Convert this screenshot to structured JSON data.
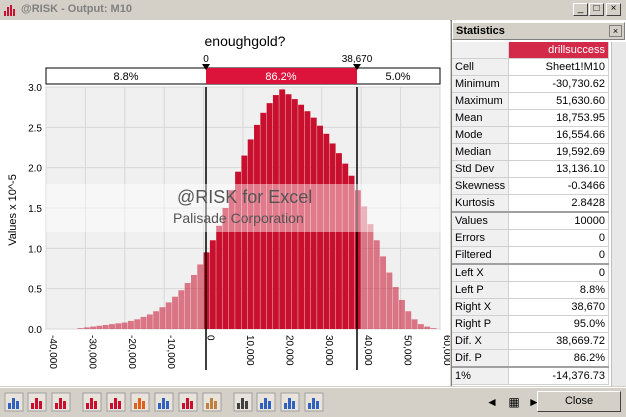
{
  "window": {
    "title": "@RISK - Output: M10",
    "buttons": [
      "_",
      "□",
      "×"
    ]
  },
  "chart": {
    "title": "enoughgold?",
    "ylabel": "Values x 10^-5",
    "delimiter_left_value": "0",
    "delimiter_right_value": "38,670",
    "band_left": "8.8%",
    "band_mid": "86.2%",
    "band_right": "5.0%",
    "watermark_line1": "@RISK for Excel",
    "watermark_line2": "Palisade Corporation",
    "colors": {
      "bar": "#c8102e",
      "band": "#dc143c"
    }
  },
  "chart_data": {
    "type": "bar",
    "title": "enoughgold?",
    "ylabel": "Values x 10^-5",
    "xlim": [
      -40000,
      60000
    ],
    "ylim": [
      0,
      3.0
    ],
    "xticks": [
      "-40,000",
      "-30,000",
      "-20,000",
      "-10,000",
      "0",
      "10,000",
      "20,000",
      "30,000",
      "40,000",
      "50,000",
      "60,000"
    ],
    "yticks": [
      "0.0",
      "0.5",
      "1.0",
      "1.5",
      "2.0",
      "2.5",
      "3.0"
    ],
    "bin_width": 1600,
    "bin_start": -32000,
    "values": [
      0.01,
      0.02,
      0.03,
      0.04,
      0.05,
      0.06,
      0.07,
      0.08,
      0.1,
      0.12,
      0.15,
      0.18,
      0.22,
      0.27,
      0.33,
      0.4,
      0.48,
      0.57,
      0.67,
      0.8,
      0.95,
      1.1,
      1.28,
      1.5,
      1.72,
      1.95,
      2.15,
      2.35,
      2.53,
      2.68,
      2.8,
      2.9,
      2.97,
      2.91,
      2.85,
      2.78,
      2.7,
      2.62,
      2.52,
      2.42,
      2.3,
      2.18,
      2.05,
      1.9,
      1.72,
      1.52,
      1.3,
      1.1,
      0.9,
      0.7,
      0.52,
      0.36,
      0.22,
      0.12,
      0.06,
      0.03,
      0.01
    ],
    "delimiters": [
      0,
      38670
    ]
  },
  "stats": {
    "title": "Statistics",
    "column": "drillsuccess",
    "rows": [
      {
        "label": "Cell",
        "value": "Sheet1!M10"
      },
      {
        "label": "Minimum",
        "value": "-30,730.62"
      },
      {
        "label": "Maximum",
        "value": "51,630.60"
      },
      {
        "label": "Mean",
        "value": "18,753.95"
      },
      {
        "label": "Mode",
        "value": "16,554.66"
      },
      {
        "label": "Median",
        "value": "19,592.69"
      },
      {
        "label": "Std Dev",
        "value": "13,136.10"
      },
      {
        "label": "Skewness",
        "value": "-0.3466"
      },
      {
        "label": "Kurtosis",
        "value": "2.8428"
      },
      {
        "label": "Values",
        "value": "10000"
      },
      {
        "label": "Errors",
        "value": "0"
      },
      {
        "label": "Filtered",
        "value": "0"
      },
      {
        "label": "Left X",
        "value": "0"
      },
      {
        "label": "Left P",
        "value": "8.8%"
      },
      {
        "label": "Right X",
        "value": "38,670"
      },
      {
        "label": "Right P",
        "value": "95.0%"
      },
      {
        "label": "Dif. X",
        "value": "38,669.72"
      },
      {
        "label": "Dif. P",
        "value": "86.2%"
      },
      {
        "label": "1%",
        "value": "-14,376.73"
      }
    ]
  },
  "toolbar": {
    "close_label": "Close",
    "icons": [
      "sim-settings-icon",
      "histogram-icon",
      "cumulative-icon",
      "bar-graph-icon",
      "tornado-icon",
      "scatter-icon",
      "spider-icon",
      "percentile-icon",
      "summary-icon",
      "filter-icon",
      "fit-icon",
      "zoom-in-icon",
      "zoom-out-icon",
      "prev-icon",
      "page-icon",
      "next-icon"
    ]
  }
}
